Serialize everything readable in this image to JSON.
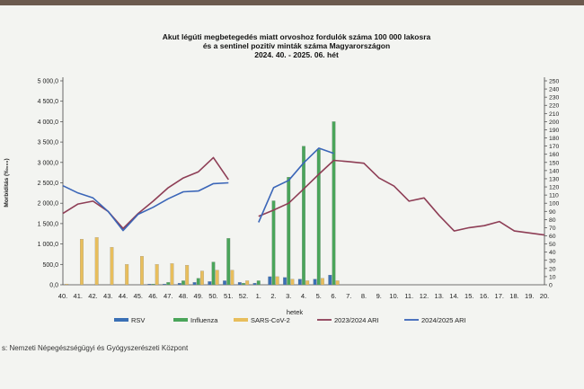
{
  "chart_data": {
    "type": "bar",
    "title": [
      "Akut légúti megbetegedés miatt orvoshoz fordulók száma 100 000 lakosra",
      "és a sentinel pozitív minták száma Magyarországon",
      "2024. 40. - 2025. 06. hét"
    ],
    "xlabel": "hetek",
    "ylabel": "Morbiditás (‰₀₀₀)",
    "y2label": "",
    "categories": [
      "40.",
      "41.",
      "42.",
      "43.",
      "44.",
      "45.",
      "46.",
      "47.",
      "48.",
      "49.",
      "50.",
      "51.",
      "52.",
      "1.",
      "2.",
      "3.",
      "4.",
      "5.",
      "6.",
      "7.",
      "8.",
      "9.",
      "10.",
      "11.",
      "12.",
      "13.",
      "14.",
      "15.",
      "16.",
      "17.",
      "18.",
      "19.",
      "20."
    ],
    "left_axis": {
      "ylim": [
        0,
        5000
      ],
      "ticks": [
        "0,0",
        "500,0",
        "1 000,0",
        "1 500,0",
        "2 000,0",
        "2 500,0",
        "3 000,0",
        "3 500,0",
        "4 000,0",
        "4 500,0",
        "5 000,0"
      ]
    },
    "right_axis": {
      "ylim": [
        0,
        250
      ],
      "ticks": [
        "0",
        "10",
        "20",
        "30",
        "40",
        "50",
        "60",
        "70",
        "80",
        "90",
        "100",
        "110",
        "120",
        "130",
        "140",
        "150",
        "160",
        "170",
        "180",
        "190",
        "200",
        "210",
        "220",
        "230",
        "240",
        "250"
      ]
    },
    "bar_series": [
      {
        "name": "RSV",
        "color": "#3a6fb5",
        "axis": "right",
        "values": [
          0,
          0,
          0,
          0,
          0,
          0,
          1,
          1,
          2,
          3,
          4,
          5,
          3,
          2,
          10,
          9,
          7,
          7,
          12,
          null,
          null,
          null,
          null,
          null,
          null,
          null,
          null,
          null,
          null,
          null,
          null,
          null,
          null
        ]
      },
      {
        "name": "Influenza",
        "color": "#4aa55a",
        "axis": "right",
        "values": [
          0,
          0,
          0,
          0,
          0,
          0,
          1,
          3,
          5,
          8,
          28,
          57,
          2,
          5,
          103,
          132,
          170,
          166,
          200,
          null,
          null,
          null,
          null,
          null,
          null,
          null,
          null,
          null,
          null,
          null,
          null,
          null,
          null
        ]
      },
      {
        "name": "SARS-CoV-2",
        "color": "#e8be5c",
        "axis": "right",
        "values": [
          1,
          56,
          58,
          46,
          25,
          35,
          25,
          26,
          24,
          17,
          18,
          18,
          5,
          0,
          10,
          7,
          5,
          8,
          5,
          null,
          null,
          null,
          null,
          null,
          null,
          null,
          null,
          null,
          null,
          null,
          null,
          null,
          null
        ]
      }
    ],
    "line_series": [
      {
        "name": "2023/2024 ARI",
        "color": "#8e3e56",
        "axis": "left",
        "values": [
          1750,
          1980,
          2050,
          1800,
          1380,
          1750,
          2050,
          2380,
          2620,
          2770,
          3120,
          2580,
          null,
          1680,
          1830,
          2000,
          2350,
          2710,
          3050,
          3020,
          2980,
          2620,
          2420,
          2050,
          2130,
          1700,
          1320,
          1400,
          1450,
          1550,
          1320,
          1270,
          1220
        ]
      },
      {
        "name": "2024/2025 ARI",
        "color": "#3b66b8",
        "axis": "left",
        "values": [
          2430,
          2250,
          2130,
          1800,
          1330,
          1730,
          1900,
          2110,
          2280,
          2300,
          2480,
          2500,
          null,
          1530,
          2380,
          2560,
          2990,
          3350,
          3220,
          null,
          null,
          null,
          null,
          null,
          null,
          null,
          null,
          null,
          null,
          null,
          null,
          null,
          null
        ]
      }
    ],
    "legend": {
      "placement": "bottom"
    }
  },
  "footer": {
    "source": "s: Nemzeti Népegészségügyi és Gyógyszerészeti Központ"
  }
}
